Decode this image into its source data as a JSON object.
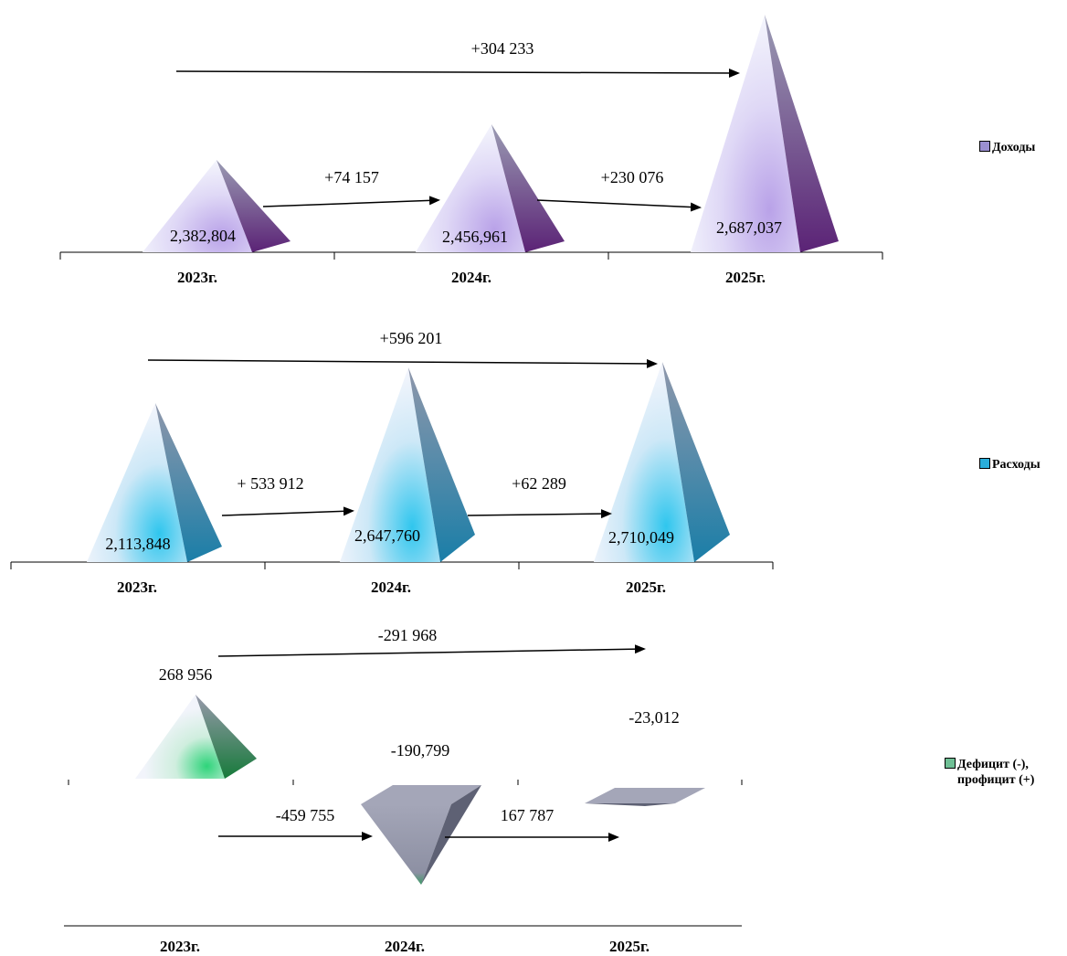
{
  "chart_data": [
    {
      "type": "bar",
      "shape": "pyramid",
      "categories": [
        "2023г.",
        "2024г.",
        "2025г."
      ],
      "series": [
        {
          "name": "Доходы",
          "values": [
            2382804,
            2456961,
            2687037
          ]
        }
      ],
      "value_labels": [
        "2,382,804",
        "2,456,961",
        "2,687,037"
      ],
      "change_labels": [
        "+74 157",
        "+230 076"
      ],
      "total_change_label": "+304 233",
      "legend": {
        "label": "Доходы",
        "position": "right"
      },
      "colors": {
        "light": "#eef0fb",
        "mid": "#b9a2e8",
        "dark": "#5b2376",
        "side": "#7d7f9c"
      }
    },
    {
      "type": "bar",
      "shape": "pyramid",
      "categories": [
        "2023г.",
        "2024г.",
        "2025г."
      ],
      "series": [
        {
          "name": "Расходы",
          "values": [
            2113848,
            2647760,
            2710049
          ]
        }
      ],
      "value_labels": [
        "2,113,848",
        "2,647,760",
        "2,710,049"
      ],
      "change_labels": [
        "+ 533 912",
        "+62 289"
      ],
      "total_change_label": "+596 201",
      "legend": {
        "label": "Расходы",
        "position": "right"
      },
      "colors": {
        "light": "#eef2fb",
        "mid": "#2fc6ee",
        "dark": "#1a7ea8",
        "side": "#7d8a9c"
      }
    },
    {
      "type": "bar",
      "shape": "pyramid",
      "categories": [
        "2023г.",
        "2024г.",
        "2025г."
      ],
      "series": [
        {
          "name": "Дефицит (-), профицит (+)",
          "values": [
            268956,
            -190799,
            -23012
          ]
        }
      ],
      "value_labels": [
        "268 956",
        "-190,799",
        "-23,012"
      ],
      "change_labels": [
        "-459 755",
        "167 787"
      ],
      "total_change_label": "-291 968",
      "legend": {
        "label": "Дефицит (-),\nпрофицит (+)",
        "position": "right"
      },
      "colors": {
        "light": "#eef2f8",
        "mid": "#2ed47a",
        "dark": "#167a3a",
        "side": "#8c8fa0",
        "neg": "#a4a6b8",
        "negDark": "#5e6174",
        "negSide": "#7d8092"
      }
    }
  ]
}
